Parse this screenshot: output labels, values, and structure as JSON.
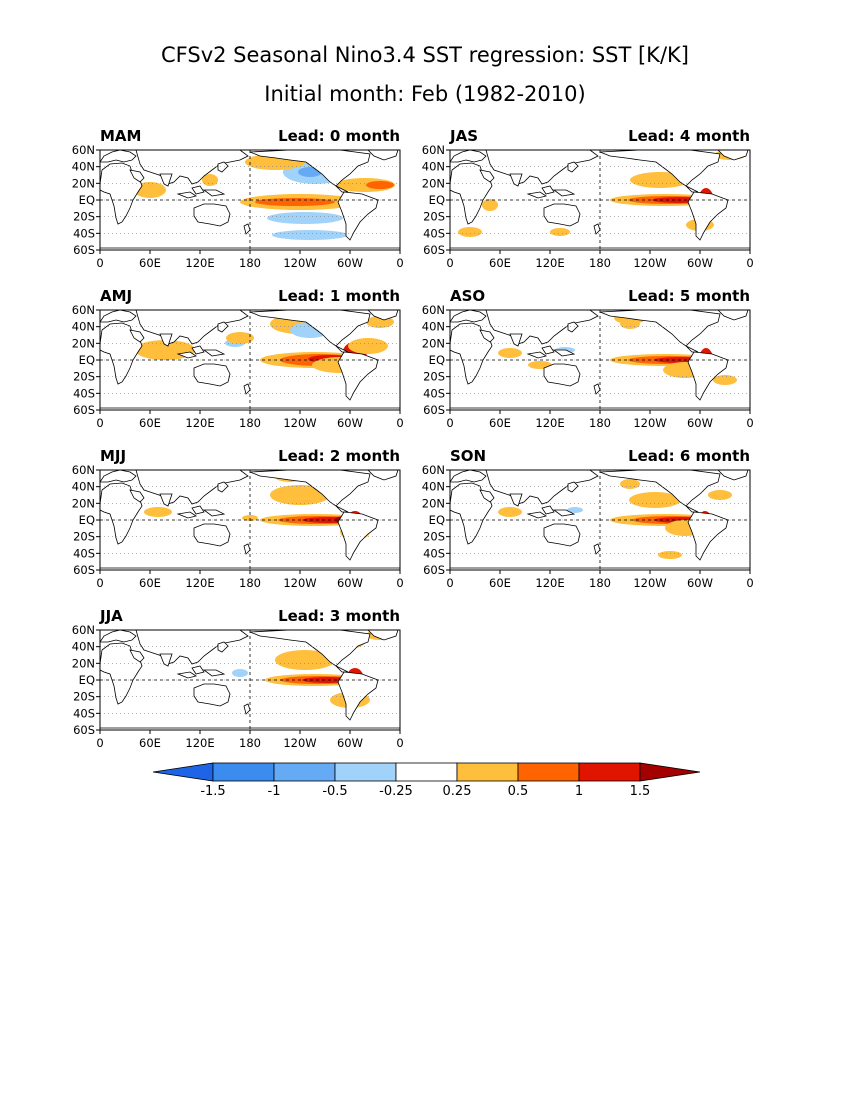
{
  "title": "CFSv2 Seasonal Nino3.4 SST regression: SST [K/K]",
  "subtitle": "Initial month: Feb (1982-2010)",
  "panels": [
    {
      "season": "MAM",
      "lead": "Lead: 0 month"
    },
    {
      "season": "AMJ",
      "lead": "Lead: 1 month"
    },
    {
      "season": "MJJ",
      "lead": "Lead: 2 month"
    },
    {
      "season": "JJA",
      "lead": "Lead: 3 month"
    },
    {
      "season": "JAS",
      "lead": "Lead: 4 month"
    },
    {
      "season": "ASO",
      "lead": "Lead: 5 month"
    },
    {
      "season": "SON",
      "lead": "Lead: 6 month"
    }
  ],
  "axes": {
    "x_ticks": [
      "0",
      "60E",
      "120E",
      "180",
      "120W",
      "60W",
      "0"
    ],
    "y_ticks": [
      "60N",
      "40N",
      "20N",
      "EQ",
      "20S",
      "40S",
      "60S"
    ]
  },
  "colorbar": {
    "labels": [
      "-1.5",
      "-1",
      "-0.5",
      "-0.25",
      "0.25",
      "0.5",
      "1",
      "1.5"
    ],
    "colors": [
      "#1e64e6",
      "#3c8cf0",
      "#64aaf5",
      "#a0d2fa",
      "#ffffff",
      "#ffbe3c",
      "#ff6400",
      "#e11400",
      "#a50000"
    ]
  },
  "colors": {
    "land": "#ffffff",
    "coast": "#000000",
    "grid": "#808080",
    "warm_light": "#ffbe3c",
    "warm_mid": "#ff6400",
    "warm_strong": "#e11400",
    "warm_peak": "#a50000",
    "cool_light": "#a0d2fa",
    "cool_mid": "#64aaf5"
  }
}
